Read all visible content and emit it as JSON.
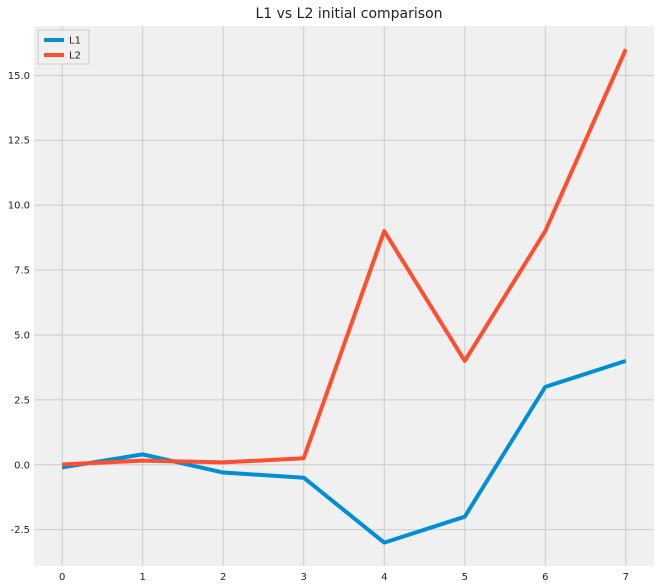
{
  "chart_data": {
    "type": "line",
    "title": "L1 vs L2 initial comparison",
    "xlabel": "",
    "ylabel": "",
    "x": [
      0,
      1,
      2,
      3,
      4,
      5,
      6,
      7
    ],
    "x_ticks": [
      "0",
      "1",
      "2",
      "3",
      "4",
      "5",
      "6",
      "7"
    ],
    "y_ticks": [
      "-2.5",
      "0.0",
      "2.5",
      "5.0",
      "7.5",
      "10.0",
      "12.5",
      "15.0"
    ],
    "y_tick_values": [
      -2.5,
      0,
      2.5,
      5,
      7.5,
      10,
      12.5,
      15
    ],
    "xlim": [
      -0.35,
      7.35
    ],
    "ylim": [
      -3.9,
      16.9
    ],
    "grid": true,
    "legend_position": "top-left",
    "background_color": "#f0f0f0",
    "grid_color": "#cbcbcb",
    "series": [
      {
        "name": "L1",
        "color": "#008fd5",
        "values": [
          -0.1,
          0.4,
          -0.3,
          -0.5,
          -3.0,
          -2.0,
          3.0,
          4.0
        ]
      },
      {
        "name": "L2",
        "color": "#fc4f30",
        "values": [
          0.01,
          0.16,
          0.09,
          0.25,
          9.0,
          4.0,
          9.0,
          16.0
        ]
      }
    ]
  }
}
